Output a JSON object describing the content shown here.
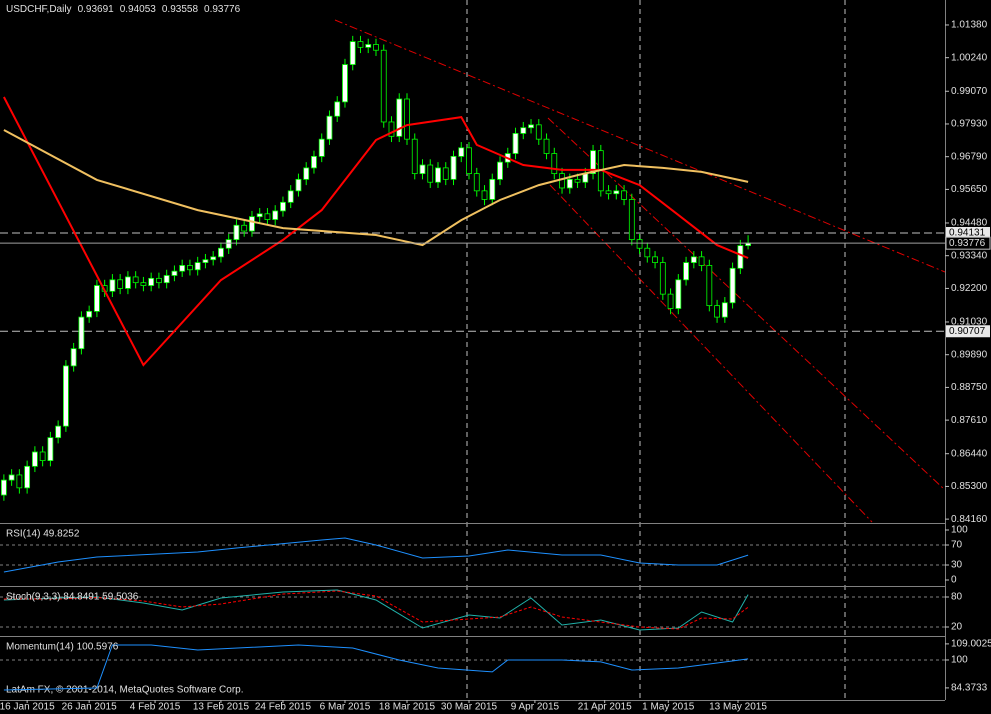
{
  "footer": "LatAm FX, © 2001-2014, MetaQuotes Software Corp.",
  "chart_data": [
    {
      "type": "candlestick",
      "title": "USDCHF,Daily",
      "open": [
        0.85,
        0.8552,
        0.857,
        0.8525,
        0.86,
        0.865,
        0.862,
        0.87,
        0.874,
        0.895,
        0.901,
        0.912,
        0.914,
        0.923,
        0.921,
        0.925,
        0.922,
        0.926,
        0.924,
        0.923,
        0.9255,
        0.924,
        0.9265,
        0.928,
        0.93,
        0.9285,
        0.931,
        0.932,
        0.933,
        0.936,
        0.939,
        0.944,
        0.942,
        0.947,
        0.948,
        0.946,
        0.949,
        0.952,
        0.956,
        0.96,
        0.964,
        0.968,
        0.974,
        0.982,
        0.987,
        1.0,
        1.008,
        1.006,
        1.007,
        1.005,
        0.98,
        0.975,
        0.988,
        0.974,
        0.962,
        0.965,
        0.959,
        0.964,
        0.96,
        0.968,
        0.971,
        0.962,
        0.956,
        0.953,
        0.96,
        0.966,
        0.969,
        0.976,
        0.978,
        0.979,
        0.974,
        0.969,
        0.962,
        0.957,
        0.96,
        0.959,
        0.962,
        0.97,
        0.956,
        0.955,
        0.956,
        0.953,
        0.939,
        0.936,
        0.933,
        0.931,
        0.92,
        0.915,
        0.925,
        0.931,
        0.933,
        0.93,
        0.916,
        0.912,
        0.917,
        0.929,
        0.93691
      ],
      "high": [
        0.8572,
        0.859,
        0.859,
        0.862,
        0.867,
        0.867,
        0.872,
        0.876,
        0.897,
        0.903,
        0.914,
        0.916,
        0.925,
        0.925,
        0.927,
        0.927,
        0.928,
        0.928,
        0.926,
        0.9275,
        0.9275,
        0.9285,
        0.93,
        0.932,
        0.932,
        0.933,
        0.934,
        0.935,
        0.938,
        0.941,
        0.946,
        0.946,
        0.949,
        0.95,
        0.95,
        0.951,
        0.954,
        0.958,
        0.962,
        0.966,
        0.97,
        0.976,
        0.984,
        0.989,
        1.002,
        1.01,
        1.01,
        1.009,
        1.009,
        1.007,
        0.982,
        0.99,
        0.99,
        0.976,
        0.967,
        0.967,
        0.966,
        0.966,
        0.97,
        0.973,
        0.973,
        0.964,
        0.958,
        0.962,
        0.968,
        0.971,
        0.978,
        0.98,
        0.981,
        0.981,
        0.976,
        0.971,
        0.964,
        0.962,
        0.962,
        0.964,
        0.972,
        0.972,
        0.958,
        0.958,
        0.958,
        0.955,
        0.941,
        0.938,
        0.935,
        0.933,
        0.922,
        0.927,
        0.933,
        0.935,
        0.935,
        0.932,
        0.918,
        0.919,
        0.931,
        0.9389,
        0.94053
      ],
      "low": [
        0.848,
        0.8532,
        0.8505,
        0.8505,
        0.858,
        0.86,
        0.86,
        0.868,
        0.872,
        0.893,
        0.899,
        0.91,
        0.912,
        0.919,
        0.919,
        0.92,
        0.92,
        0.922,
        0.921,
        0.921,
        0.922,
        0.922,
        0.9245,
        0.926,
        0.9265,
        0.9265,
        0.929,
        0.93,
        0.931,
        0.934,
        0.937,
        0.94,
        0.94,
        0.945,
        0.944,
        0.944,
        0.947,
        0.95,
        0.954,
        0.958,
        0.962,
        0.966,
        0.972,
        0.98,
        0.985,
        0.998,
        1.004,
        1.004,
        1.003,
        0.978,
        0.973,
        0.973,
        0.972,
        0.96,
        0.96,
        0.957,
        0.957,
        0.958,
        0.958,
        0.966,
        0.96,
        0.954,
        0.951,
        0.951,
        0.958,
        0.964,
        0.967,
        0.974,
        0.976,
        0.972,
        0.967,
        0.96,
        0.955,
        0.955,
        0.957,
        0.957,
        0.96,
        0.954,
        0.953,
        0.953,
        0.951,
        0.937,
        0.934,
        0.931,
        0.929,
        0.918,
        0.913,
        0.913,
        0.923,
        0.929,
        0.928,
        0.914,
        0.91,
        0.91,
        0.915,
        0.927,
        0.93558
      ],
      "close": [
        0.8552,
        0.857,
        0.8525,
        0.86,
        0.865,
        0.862,
        0.87,
        0.874,
        0.895,
        0.901,
        0.912,
        0.914,
        0.923,
        0.921,
        0.925,
        0.922,
        0.926,
        0.924,
        0.923,
        0.9255,
        0.924,
        0.9265,
        0.928,
        0.93,
        0.9285,
        0.931,
        0.932,
        0.933,
        0.936,
        0.939,
        0.944,
        0.942,
        0.947,
        0.948,
        0.946,
        0.949,
        0.952,
        0.956,
        0.96,
        0.964,
        0.968,
        0.974,
        0.982,
        0.987,
        1.0,
        1.008,
        1.006,
        1.007,
        1.005,
        0.98,
        0.975,
        0.988,
        0.974,
        0.962,
        0.965,
        0.959,
        0.964,
        0.96,
        0.968,
        0.971,
        0.962,
        0.956,
        0.953,
        0.96,
        0.966,
        0.969,
        0.976,
        0.978,
        0.979,
        0.974,
        0.969,
        0.962,
        0.957,
        0.96,
        0.959,
        0.962,
        0.97,
        0.956,
        0.955,
        0.956,
        0.953,
        0.939,
        0.936,
        0.933,
        0.931,
        0.92,
        0.915,
        0.925,
        0.931,
        0.933,
        0.93,
        0.916,
        0.912,
        0.917,
        0.929,
        0.93691,
        0.93776
      ],
      "up_color": "#ffffff",
      "down_color": "#000000",
      "wick_color": "#00ff00",
      "series": [
        {
          "color": "#ff0000",
          "x": [
            0,
            18,
            28,
            36,
            41,
            48,
            52,
            59,
            61,
            67,
            72,
            77,
            82,
            87,
            92,
            96
          ],
          "values": [
            0.9887,
            0.8953,
            0.9249,
            0.9389,
            0.9493,
            0.9737,
            0.9789,
            0.9817,
            0.972,
            0.965,
            0.9633,
            0.9633,
            0.958,
            0.9476,
            0.9371,
            0.9326
          ]
        },
        {
          "color": "#f0c060",
          "x": [
            0,
            12,
            25,
            36,
            48,
            54,
            59,
            64,
            69,
            74,
            80,
            85,
            90,
            96
          ],
          "values": [
            0.9772,
            0.9598,
            0.9493,
            0.943,
            0.9406,
            0.9371,
            0.9458,
            0.9528,
            0.958,
            0.9615,
            0.965,
            0.964,
            0.9626,
            0.9591
          ]
        }
      ],
      "hlines": [
        0.94131,
        0.90707
      ],
      "xlim": [
        -0.5,
        121.4
      ],
      "ylim": [
        0.8406,
        1.0225
      ],
      "yticks": [
        {
          "value": 1.0138,
          "label": "1.01380"
        },
        {
          "value": 1.0024,
          "label": "1.00240"
        },
        {
          "value": 0.9907,
          "label": "0.99070"
        },
        {
          "value": 0.9793,
          "label": "0.97930"
        },
        {
          "value": 0.9679,
          "label": "0.96790"
        },
        {
          "value": 0.9565,
          "label": "0.95650"
        },
        {
          "value": 0.9448,
          "label": "0.94480"
        },
        {
          "value": 0.9334,
          "label": "0.93340"
        },
        {
          "value": 0.922,
          "label": "0.92200"
        },
        {
          "value": 0.9103,
          "label": "0.91030"
        },
        {
          "value": 0.8989,
          "label": "0.89890"
        },
        {
          "value": 0.8875,
          "label": "0.88750"
        },
        {
          "value": 0.8761,
          "label": "0.87610"
        },
        {
          "value": 0.8644,
          "label": "0.86440"
        },
        {
          "value": 0.853,
          "label": "0.85300"
        },
        {
          "value": 0.8416,
          "label": "0.84160"
        }
      ],
      "xticks": [
        {
          "value": 3,
          "label": "16 Jan 2015"
        },
        {
          "value": 11,
          "label": "26 Jan 2015"
        },
        {
          "value": 19.5,
          "label": "4 Feb 2015"
        },
        {
          "value": 28,
          "label": "13 Feb 2015"
        },
        {
          "value": 36,
          "label": "24 Feb 2015"
        },
        {
          "value": 44,
          "label": "6 Mar 2015"
        },
        {
          "value": 52,
          "label": "18 Mar 2015"
        },
        {
          "value": 60,
          "label": "30 Mar 2015"
        },
        {
          "value": 68.5,
          "label": "9 Apr 2015"
        },
        {
          "value": 77.5,
          "label": "21 Apr 2015"
        },
        {
          "value": 85.7,
          "label": "1 May 2015"
        },
        {
          "value": 94.7,
          "label": "13 May 2015"
        }
      ]
    },
    {
      "type": "line",
      "title": "RSI(14) 49.8252",
      "ylim": [
        -10,
        110
      ],
      "yticks": [
        100,
        70,
        30,
        0
      ],
      "levels": [
        70,
        30
      ],
      "series": [
        {
          "color": "#1e90ff",
          "x": [
            0,
            7,
            12,
            25,
            30,
            41,
            44,
            48,
            54,
            60,
            65,
            72,
            77,
            82,
            87,
            92,
            96
          ],
          "values": [
            16,
            36,
            46,
            56,
            64,
            80,
            84,
            70,
            44,
            48,
            60,
            50,
            50,
            34,
            30,
            30,
            49.8252
          ]
        }
      ]
    },
    {
      "type": "line",
      "title": "Stoch(9,3,3) 84.8491 59.5036",
      "ylim": [
        4,
        98
      ],
      "yticks": [
        80,
        20
      ],
      "levels": [
        80,
        20
      ],
      "series": [
        {
          "color": "#20b2aa",
          "x": [
            0,
            7,
            12,
            18,
            23,
            28,
            36,
            43,
            48,
            54,
            60,
            64,
            68,
            72,
            77,
            82,
            87,
            90,
            94,
            96
          ],
          "values": [
            74,
            78,
            80,
            68,
            54,
            78,
            90,
            94,
            74,
            18,
            44,
            38,
            78,
            24,
            34,
            14,
            18,
            50,
            30,
            84.8491
          ]
        },
        {
          "color": "#ff0000",
          "dash": true,
          "x": [
            0,
            7,
            12,
            18,
            23,
            28,
            36,
            43,
            48,
            54,
            60,
            64,
            68,
            72,
            77,
            82,
            87,
            90,
            94,
            96
          ],
          "values": [
            76,
            76,
            79,
            72,
            60,
            66,
            86,
            92,
            82,
            30,
            36,
            40,
            60,
            40,
            30,
            20,
            16,
            38,
            36,
            59.5036
          ]
        }
      ]
    },
    {
      "type": "line",
      "title": "Momentum(14) 100.5976",
      "ylim": [
        77.6,
        112.3
      ],
      "yticks": [
        109.0025,
        100,
        84.3733
      ],
      "levels": [
        100
      ],
      "series": [
        {
          "color": "#1e90ff",
          "x": [
            0,
            12,
            14,
            19,
            25,
            38,
            45,
            51,
            56,
            63,
            65,
            72,
            77,
            81,
            87,
            92,
            96
          ],
          "values": [
            83.2,
            84.3,
            108.4,
            108.4,
            105.6,
            108.4,
            106.7,
            100,
            95.5,
            93.3,
            100,
            100,
            98.9,
            94.4,
            95.5,
            98.3,
            100.5976
          ]
        }
      ]
    }
  ]
}
